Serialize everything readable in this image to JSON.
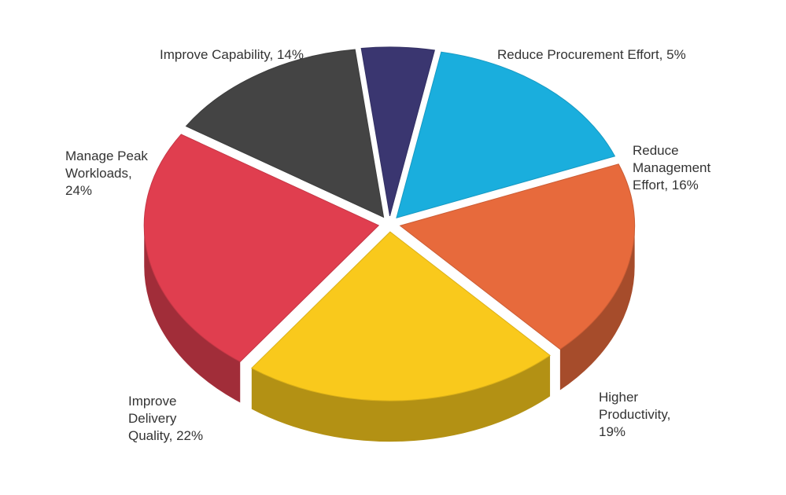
{
  "chart_data": {
    "type": "pie",
    "title": "",
    "style": "3d-exploded",
    "series": [
      {
        "name": "Reduce Procurement Effort",
        "value": 5,
        "percent_label": "5%",
        "color": "#3a3670"
      },
      {
        "name": "Reduce Management Effort",
        "value": 16,
        "percent_label": "16%",
        "color": "#1aaedd"
      },
      {
        "name": "Higher Productivity",
        "value": 19,
        "percent_label": "19%",
        "color": "#e76a3c"
      },
      {
        "name": "Improve Delivery Quality",
        "value": 22,
        "percent_label": "22%",
        "color": "#f9c91c"
      },
      {
        "name": "Manage Peak Workloads",
        "value": 24,
        "percent_label": "24%",
        "color": "#e03e4f"
      },
      {
        "name": "Improve Capability",
        "value": 14,
        "percent_label": "14%",
        "color": "#444444"
      }
    ],
    "labels": [
      [
        "Reduce Procurement Effort, 5%"
      ],
      [
        "Reduce",
        "Management",
        "Effort, 16%"
      ],
      [
        "Higher",
        "Productivity,",
        "19%"
      ],
      [
        "Improve",
        "Delivery",
        "Quality, 22%"
      ],
      [
        "Manage Peak",
        "Workloads,",
        "24%"
      ],
      [
        "Improve Capability, 14%"
      ]
    ]
  }
}
